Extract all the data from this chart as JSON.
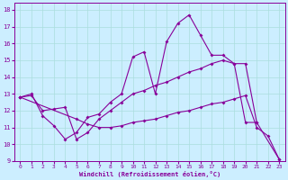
{
  "xlabel": "Windchill (Refroidissement éolien,°C)",
  "bg_color": "#cceeff",
  "grid_color": "#aadddd",
  "line_color": "#880099",
  "xlim": [
    -0.5,
    23.5
  ],
  "ylim": [
    9,
    18.4
  ],
  "xticks": [
    0,
    1,
    2,
    3,
    4,
    5,
    6,
    7,
    8,
    9,
    10,
    11,
    12,
    13,
    14,
    15,
    16,
    17,
    18,
    19,
    20,
    21,
    22,
    23
  ],
  "yticks": [
    9,
    10,
    11,
    12,
    13,
    14,
    15,
    16,
    17,
    18
  ],
  "line1_x": [
    0,
    1,
    2,
    3,
    4,
    5,
    6,
    7,
    8,
    9,
    10,
    11,
    12,
    13,
    14,
    15,
    16,
    17,
    18,
    19,
    20,
    21
  ],
  "line1_y": [
    12.8,
    13.0,
    11.7,
    11.1,
    10.3,
    10.7,
    11.6,
    11.8,
    12.5,
    13.0,
    15.2,
    15.5,
    13.0,
    16.1,
    17.2,
    17.7,
    16.5,
    15.3,
    15.3,
    14.8,
    11.3,
    11.3
  ],
  "line2_x": [
    0,
    1,
    2,
    3,
    4,
    5,
    6,
    7,
    8,
    9,
    10,
    11,
    12,
    13,
    14,
    15,
    16,
    17,
    18,
    19,
    20,
    21,
    23
  ],
  "line2_y": [
    12.8,
    12.9,
    12.0,
    12.1,
    12.2,
    10.3,
    10.7,
    11.5,
    12.0,
    12.5,
    13.0,
    13.2,
    13.5,
    13.7,
    14.0,
    14.3,
    14.5,
    14.8,
    15.0,
    14.8,
    14.8,
    11.3,
    9.1
  ],
  "line3_x": [
    0,
    5,
    6,
    7,
    8,
    9,
    10,
    11,
    12,
    13,
    14,
    15,
    16,
    17,
    18,
    19,
    20,
    21,
    22,
    23
  ],
  "line3_y": [
    12.8,
    11.5,
    11.2,
    11.0,
    11.0,
    11.1,
    11.3,
    11.4,
    11.5,
    11.7,
    11.9,
    12.0,
    12.2,
    12.4,
    12.5,
    12.7,
    12.9,
    11.0,
    10.5,
    9.1
  ]
}
